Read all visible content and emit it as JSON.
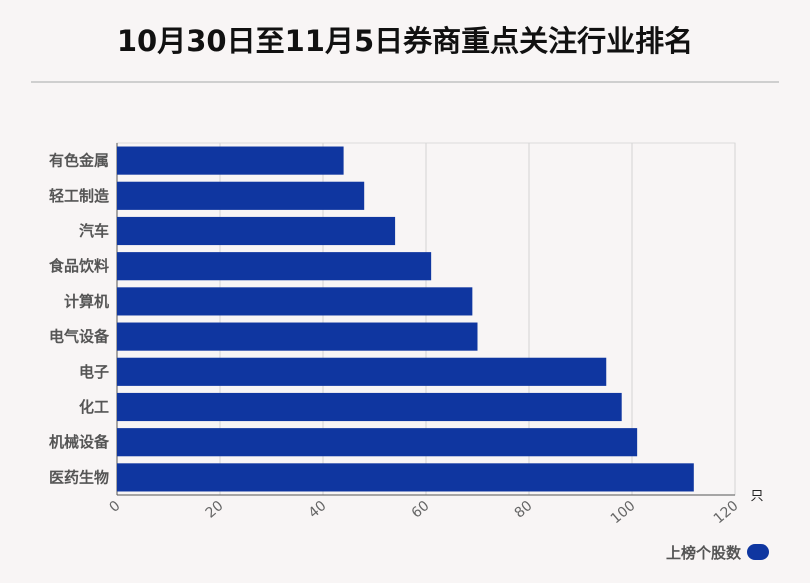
{
  "chart_data": {
    "type": "bar",
    "orientation": "horizontal",
    "title": "10月30日至11月5日券商重点关注行业排名",
    "categories": [
      "有色金属",
      "轻工制造",
      "汽车",
      "食品饮料",
      "计算机",
      "电气设备",
      "电子",
      "化工",
      "机械设备",
      "医药生物"
    ],
    "series": [
      {
        "name": "上榜个股数",
        "values": [
          44,
          48,
          54,
          61,
          69,
          70,
          95,
          98,
          101,
          112
        ]
      }
    ],
    "xlim": [
      0,
      120
    ],
    "x_ticks": [
      "0",
      "20",
      "40",
      "60",
      "80",
      "100",
      "120"
    ],
    "x_unit": "只",
    "grid": true,
    "legend_position": "bottom-right",
    "bar_color": "#0f36a0"
  }
}
